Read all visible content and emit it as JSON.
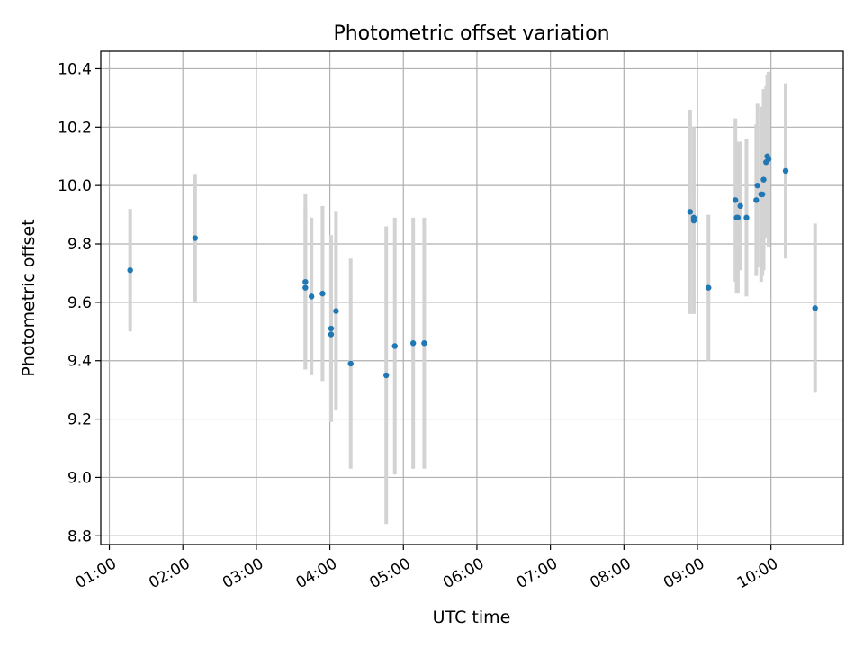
{
  "chart_data": {
    "type": "scatter",
    "title": "Photometric offset variation",
    "xlabel": "UTC time",
    "ylabel": "Photometric offset",
    "x_tick_labels": [
      "01:00",
      "02:00",
      "03:00",
      "04:00",
      "05:00",
      "06:00",
      "07:00",
      "08:00",
      "09:00",
      "10:00"
    ],
    "x_ticks": [
      "01:00",
      "02:00",
      "03:00",
      "04:00",
      "05:00",
      "06:00",
      "07:00",
      "08:00",
      "09:00",
      "10:00"
    ],
    "xlim": [
      "00:53",
      "10:59"
    ],
    "y_ticks": [
      8.8,
      9.0,
      9.2,
      9.4,
      9.6,
      9.8,
      10.0,
      10.2,
      10.4
    ],
    "y_tick_labels": [
      "8.8",
      "9.0",
      "9.2",
      "9.4",
      "9.6",
      "9.8",
      "10.0",
      "10.2",
      "10.4"
    ],
    "ylim": [
      8.77,
      10.46
    ],
    "grid": true,
    "colors": {
      "points": "#1f77b4",
      "errorbars": "#d3d3d3",
      "grid": "#b0b0b0"
    },
    "points": [
      {
        "x": "01:17",
        "y": 9.71,
        "err": 0.21
      },
      {
        "x": "02:10",
        "y": 9.82,
        "err": 0.22
      },
      {
        "x": "03:40",
        "y": 9.67,
        "err": 0.3
      },
      {
        "x": "03:40",
        "y": 9.65,
        "err": 0.28
      },
      {
        "x": "03:45",
        "y": 9.62,
        "err": 0.27
      },
      {
        "x": "03:54",
        "y": 9.63,
        "err": 0.3
      },
      {
        "x": "04:01",
        "y": 9.51,
        "err": 0.32
      },
      {
        "x": "04:01",
        "y": 9.49,
        "err": 0.3
      },
      {
        "x": "04:05",
        "y": 9.57,
        "err": 0.34
      },
      {
        "x": "04:17",
        "y": 9.39,
        "err": 0.36
      },
      {
        "x": "04:46",
        "y": 9.35,
        "err": 0.51
      },
      {
        "x": "04:53",
        "y": 9.45,
        "err": 0.44
      },
      {
        "x": "05:08",
        "y": 9.46,
        "err": 0.43
      },
      {
        "x": "05:17",
        "y": 9.46,
        "err": 0.43
      },
      {
        "x": "08:54",
        "y": 9.91,
        "err": 0.35
      },
      {
        "x": "08:57",
        "y": 9.89,
        "err": 0.31
      },
      {
        "x": "08:57",
        "y": 9.88,
        "err": 0.32
      },
      {
        "x": "09:09",
        "y": 9.65,
        "err": 0.25
      },
      {
        "x": "09:31",
        "y": 9.95,
        "err": 0.28
      },
      {
        "x": "09:32",
        "y": 9.89,
        "err": 0.26
      },
      {
        "x": "09:33",
        "y": 9.89,
        "err": 0.26
      },
      {
        "x": "09:35",
        "y": 9.93,
        "err": 0.22
      },
      {
        "x": "09:40",
        "y": 9.89,
        "err": 0.27
      },
      {
        "x": "09:48",
        "y": 9.95,
        "err": 0.26
      },
      {
        "x": "09:49",
        "y": 10.0,
        "err": 0.28
      },
      {
        "x": "09:52",
        "y": 9.97,
        "err": 0.3
      },
      {
        "x": "09:53",
        "y": 9.97,
        "err": 0.28
      },
      {
        "x": "09:54",
        "y": 10.02,
        "err": 0.31
      },
      {
        "x": "09:56",
        "y": 10.08,
        "err": 0.26
      },
      {
        "x": "09:57",
        "y": 10.1,
        "err": 0.28
      },
      {
        "x": "09:58",
        "y": 10.09,
        "err": 0.3
      },
      {
        "x": "10:12",
        "y": 10.05,
        "err": 0.3
      },
      {
        "x": "10:36",
        "y": 9.58,
        "err": 0.29
      }
    ]
  }
}
